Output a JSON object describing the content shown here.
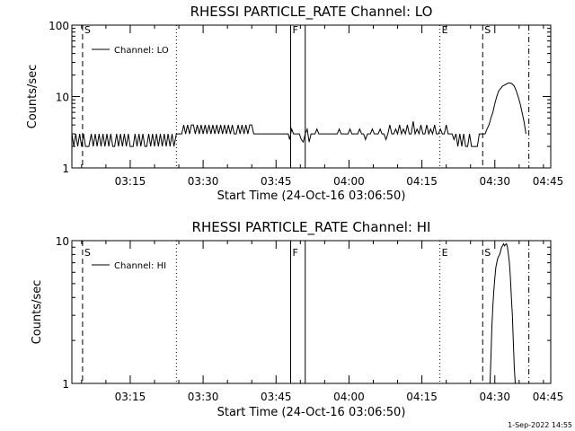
{
  "footer_date": "1-Sep-2022 14:55",
  "chart_data": [
    {
      "type": "line",
      "title": "RHESSI PARTICLE_RATE Channel: LO",
      "xlabel": "Start Time (24-Oct-16 03:06:50)",
      "ylabel": "Counts/sec",
      "y_scale": "log",
      "ylim": [
        1,
        100
      ],
      "y_ticks": [
        {
          "value": 1,
          "label": "1"
        },
        {
          "value": 10,
          "label": "10"
        },
        {
          "value": 100,
          "label": "100"
        }
      ],
      "xlim_minutes": [
        3.0,
        101.5
      ],
      "x_ticks": [
        {
          "value": 15,
          "label": "03:15"
        },
        {
          "value": 30,
          "label": "03:30"
        },
        {
          "value": 45,
          "label": "03:45"
        },
        {
          "value": 60,
          "label": "04:00"
        },
        {
          "value": 75,
          "label": "04:15"
        },
        {
          "value": 90,
          "label": "04:30"
        },
        {
          "value": 105,
          "label": "04:45"
        }
      ],
      "legend": {
        "label": "Channel: LO",
        "placement": "top-left"
      },
      "markers": [
        {
          "minute": 5.2,
          "style": "dashed",
          "letter": "S"
        },
        {
          "minute": 24.5,
          "style": "dotted",
          "letter": ""
        },
        {
          "minute": 48.0,
          "style": "solid",
          "letter": "F"
        },
        {
          "minute": 51.0,
          "style": "solid",
          "letter": ""
        },
        {
          "minute": 78.7,
          "style": "dotted",
          "letter": "E"
        },
        {
          "minute": 87.5,
          "style": "dashed",
          "letter": "S"
        },
        {
          "minute": 97.0,
          "style": "dashdot",
          "letter": ""
        }
      ],
      "series": [
        {
          "name": "Channel: LO",
          "points": [
            [
              3.0,
              3
            ],
            [
              3.4,
              2
            ],
            [
              3.8,
              3
            ],
            [
              4.2,
              2
            ],
            [
              4.6,
              3
            ],
            [
              5.0,
              2
            ],
            [
              5.4,
              3
            ],
            [
              5.8,
              2
            ],
            [
              6.5,
              2
            ],
            [
              7.0,
              3
            ],
            [
              7.4,
              2
            ],
            [
              7.8,
              3
            ],
            [
              8.2,
              2
            ],
            [
              8.6,
              3
            ],
            [
              9.0,
              2
            ],
            [
              9.4,
              3
            ],
            [
              9.8,
              2
            ],
            [
              10.2,
              3
            ],
            [
              10.6,
              2
            ],
            [
              11.0,
              3
            ],
            [
              11.4,
              2
            ],
            [
              11.8,
              2
            ],
            [
              12.2,
              3
            ],
            [
              12.6,
              2
            ],
            [
              13.0,
              3
            ],
            [
              13.4,
              2
            ],
            [
              13.8,
              3
            ],
            [
              14.2,
              2
            ],
            [
              14.6,
              3
            ],
            [
              15.0,
              2
            ],
            [
              15.6,
              2
            ],
            [
              16.0,
              3
            ],
            [
              16.4,
              2
            ],
            [
              16.8,
              3
            ],
            [
              17.2,
              2
            ],
            [
              17.6,
              3
            ],
            [
              18.0,
              2
            ],
            [
              18.4,
              2
            ],
            [
              18.8,
              3
            ],
            [
              19.2,
              2
            ],
            [
              19.6,
              3
            ],
            [
              20.0,
              2
            ],
            [
              20.4,
              3
            ],
            [
              20.8,
              2
            ],
            [
              21.2,
              3
            ],
            [
              21.6,
              2
            ],
            [
              22.0,
              3
            ],
            [
              22.4,
              2
            ],
            [
              22.8,
              3
            ],
            [
              23.2,
              2
            ],
            [
              23.6,
              3
            ],
            [
              24.0,
              2
            ],
            [
              24.5,
              3
            ],
            [
              25.0,
              3
            ],
            [
              25.6,
              3
            ],
            [
              26.0,
              4
            ],
            [
              26.4,
              3
            ],
            [
              26.8,
              4
            ],
            [
              27.2,
              3
            ],
            [
              27.6,
              4
            ],
            [
              28.0,
              4
            ],
            [
              28.4,
              3
            ],
            [
              28.8,
              4
            ],
            [
              29.2,
              3
            ],
            [
              29.6,
              4
            ],
            [
              30.0,
              3
            ],
            [
              30.4,
              4
            ],
            [
              30.8,
              3
            ],
            [
              31.2,
              4
            ],
            [
              31.6,
              3
            ],
            [
              32.0,
              4
            ],
            [
              32.4,
              3
            ],
            [
              32.8,
              4
            ],
            [
              33.2,
              3
            ],
            [
              33.6,
              4
            ],
            [
              34.0,
              3
            ],
            [
              34.4,
              4
            ],
            [
              34.8,
              3
            ],
            [
              35.2,
              4
            ],
            [
              35.6,
              3
            ],
            [
              36.0,
              4
            ],
            [
              36.4,
              3
            ],
            [
              36.8,
              3
            ],
            [
              37.2,
              4
            ],
            [
              37.6,
              3
            ],
            [
              38.0,
              4
            ],
            [
              38.4,
              3
            ],
            [
              38.8,
              4
            ],
            [
              39.2,
              3
            ],
            [
              39.6,
              4
            ],
            [
              40.0,
              4
            ],
            [
              40.4,
              3
            ],
            [
              41.0,
              3
            ],
            [
              42.0,
              3
            ],
            [
              43.0,
              3
            ],
            [
              44.0,
              3
            ],
            [
              45.0,
              3
            ],
            [
              46.0,
              3
            ],
            [
              47.0,
              3
            ],
            [
              47.5,
              3
            ],
            [
              47.8,
              2.5
            ],
            [
              48.2,
              3.5
            ],
            [
              48.6,
              3
            ],
            [
              49.0,
              3
            ],
            [
              49.4,
              3
            ],
            [
              49.8,
              3
            ],
            [
              50.2,
              2.5
            ],
            [
              50.6,
              2.3
            ],
            [
              51.0,
              3
            ],
            [
              51.4,
              3.5
            ],
            [
              51.8,
              2.3
            ],
            [
              52.2,
              3
            ],
            [
              52.6,
              3
            ],
            [
              53.0,
              3
            ],
            [
              53.4,
              3.5
            ],
            [
              53.8,
              3
            ],
            [
              54.2,
              3
            ],
            [
              55.0,
              3
            ],
            [
              56.0,
              3
            ],
            [
              57.0,
              3
            ],
            [
              57.6,
              3
            ],
            [
              58.0,
              3.5
            ],
            [
              58.4,
              3
            ],
            [
              59.0,
              3
            ],
            [
              59.8,
              3
            ],
            [
              60.2,
              3.5
            ],
            [
              60.6,
              3
            ],
            [
              61.2,
              3
            ],
            [
              61.8,
              3
            ],
            [
              62.2,
              3.5
            ],
            [
              62.6,
              3
            ],
            [
              63.0,
              3
            ],
            [
              63.4,
              2.5
            ],
            [
              63.8,
              3
            ],
            [
              64.4,
              3
            ],
            [
              64.8,
              3.5
            ],
            [
              65.2,
              3
            ],
            [
              65.6,
              3
            ],
            [
              66.0,
              3
            ],
            [
              66.4,
              3.5
            ],
            [
              66.8,
              3
            ],
            [
              67.2,
              3
            ],
            [
              67.6,
              2.5
            ],
            [
              68.0,
              3
            ],
            [
              68.4,
              4
            ],
            [
              68.8,
              3
            ],
            [
              69.2,
              3
            ],
            [
              69.6,
              3.5
            ],
            [
              70.0,
              3
            ],
            [
              70.4,
              4
            ],
            [
              70.8,
              3
            ],
            [
              71.2,
              3.5
            ],
            [
              71.6,
              3
            ],
            [
              72.0,
              4
            ],
            [
              72.4,
              3
            ],
            [
              72.8,
              3
            ],
            [
              73.2,
              4.5
            ],
            [
              73.6,
              3
            ],
            [
              74.0,
              3.5
            ],
            [
              74.4,
              3
            ],
            [
              74.8,
              4
            ],
            [
              75.2,
              3
            ],
            [
              75.6,
              3
            ],
            [
              76.0,
              4
            ],
            [
              76.4,
              3
            ],
            [
              76.8,
              3.5
            ],
            [
              77.2,
              3
            ],
            [
              77.6,
              4
            ],
            [
              78.0,
              3
            ],
            [
              78.4,
              3
            ],
            [
              78.8,
              3.5
            ],
            [
              79.2,
              3
            ],
            [
              79.6,
              3
            ],
            [
              80.0,
              4
            ],
            [
              80.4,
              3
            ],
            [
              80.8,
              3
            ],
            [
              81.2,
              3
            ],
            [
              81.6,
              2.5
            ],
            [
              82.0,
              3
            ],
            [
              82.4,
              2
            ],
            [
              82.8,
              3
            ],
            [
              83.2,
              2
            ],
            [
              83.6,
              3
            ],
            [
              84.0,
              2
            ],
            [
              84.4,
              2
            ],
            [
              84.8,
              3
            ],
            [
              85.2,
              2
            ],
            [
              85.6,
              2
            ],
            [
              86.0,
              2
            ],
            [
              86.4,
              2
            ],
            [
              86.8,
              3
            ],
            [
              87.2,
              3
            ],
            [
              87.6,
              3
            ],
            [
              88.0,
              3
            ],
            [
              88.4,
              3.5
            ],
            [
              88.8,
              4
            ],
            [
              89.2,
              5
            ],
            [
              89.6,
              6
            ],
            [
              90.0,
              8
            ],
            [
              90.4,
              10
            ],
            [
              90.8,
              12
            ],
            [
              91.2,
              13
            ],
            [
              91.6,
              14
            ],
            [
              92.0,
              14.5
            ],
            [
              92.4,
              15
            ],
            [
              92.8,
              15.5
            ],
            [
              93.2,
              15.5
            ],
            [
              93.6,
              15
            ],
            [
              94.0,
              14
            ],
            [
              94.4,
              12
            ],
            [
              94.8,
              10
            ],
            [
              95.2,
              8
            ],
            [
              95.6,
              6
            ],
            [
              96.0,
              4.5
            ],
            [
              96.4,
              3
            ]
          ]
        }
      ]
    },
    {
      "type": "line",
      "title": "RHESSI PARTICLE_RATE Channel: HI",
      "xlabel": "Start Time (24-Oct-16 03:06:50)",
      "ylabel": "Counts/sec",
      "y_scale": "log",
      "ylim": [
        1,
        10
      ],
      "y_ticks": [
        {
          "value": 1,
          "label": "1"
        },
        {
          "value": 10,
          "label": "10"
        }
      ],
      "xlim_minutes": [
        3.0,
        101.5
      ],
      "x_ticks": [
        {
          "value": 15,
          "label": "03:15"
        },
        {
          "value": 30,
          "label": "03:30"
        },
        {
          "value": 45,
          "label": "03:45"
        },
        {
          "value": 60,
          "label": "04:00"
        },
        {
          "value": 75,
          "label": "04:15"
        },
        {
          "value": 90,
          "label": "04:30"
        },
        {
          "value": 105,
          "label": "04:45"
        }
      ],
      "legend": {
        "label": "Channel: HI",
        "placement": "top-left"
      },
      "markers": [
        {
          "minute": 5.2,
          "style": "dashed",
          "letter": "S"
        },
        {
          "minute": 24.5,
          "style": "dotted",
          "letter": ""
        },
        {
          "minute": 48.0,
          "style": "solid",
          "letter": "F"
        },
        {
          "minute": 51.0,
          "style": "solid",
          "letter": ""
        },
        {
          "minute": 78.7,
          "style": "dotted",
          "letter": "E"
        },
        {
          "minute": 87.5,
          "style": "dashed",
          "letter": "S"
        },
        {
          "minute": 97.0,
          "style": "dashdot",
          "letter": ""
        }
      ],
      "series": [
        {
          "name": "Channel: HI",
          "points": [
            [
              89.0,
              1.0
            ],
            [
              89.2,
              1.5
            ],
            [
              89.4,
              2.5
            ],
            [
              89.6,
              3.5
            ],
            [
              89.8,
              4.5
            ],
            [
              90.0,
              5.5
            ],
            [
              90.2,
              6.5
            ],
            [
              90.4,
              7.0
            ],
            [
              90.6,
              7.5
            ],
            [
              90.8,
              7.8
            ],
            [
              91.0,
              8.0
            ],
            [
              91.2,
              8.5
            ],
            [
              91.4,
              9.0
            ],
            [
              91.6,
              9.2
            ],
            [
              91.8,
              9.5
            ],
            [
              92.0,
              9.2
            ],
            [
              92.2,
              9.4
            ],
            [
              92.4,
              9.5
            ],
            [
              92.6,
              9.0
            ],
            [
              92.8,
              8.0
            ],
            [
              93.0,
              7.0
            ],
            [
              93.2,
              5.5
            ],
            [
              93.4,
              4.0
            ],
            [
              93.6,
              3.0
            ],
            [
              93.8,
              2.0
            ],
            [
              94.0,
              1.3
            ],
            [
              94.2,
              1.0
            ]
          ]
        }
      ]
    }
  ]
}
